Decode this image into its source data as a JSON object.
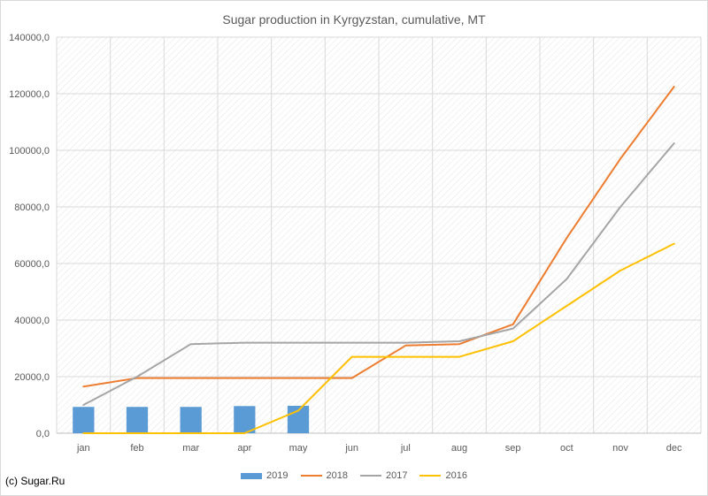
{
  "chart_data": {
    "type": "bar",
    "title": "Sugar production in Kyrgyzstan, cumulative, MT",
    "categories": [
      "jan",
      "feb",
      "mar",
      "apr",
      "may",
      "jun",
      "jul",
      "aug",
      "sep",
      "oct",
      "nov",
      "dec"
    ],
    "ylim": [
      0,
      140000
    ],
    "ytick_values": [
      0,
      20000,
      40000,
      60000,
      80000,
      100000,
      120000,
      140000
    ],
    "ytick_labels": [
      "0,0",
      "20000,0",
      "40000,0",
      "60000,0",
      "80000,0",
      "100000,0",
      "120000,0",
      "140000,0"
    ],
    "grid": true,
    "legend_position": "bottom",
    "series": [
      {
        "name": "2019",
        "kind": "bar",
        "color": "#5b9bd5",
        "values": [
          9300,
          9300,
          9300,
          9600,
          9700,
          null,
          null,
          null,
          null,
          null,
          null,
          null
        ]
      },
      {
        "name": "2018",
        "kind": "line",
        "color": "#ed7d31",
        "values": [
          16500,
          19500,
          19500,
          19500,
          19500,
          19500,
          31000,
          31500,
          38500,
          69000,
          97000,
          122500
        ]
      },
      {
        "name": "2017",
        "kind": "line",
        "color": "#a5a5a5",
        "values": [
          10000,
          20000,
          31500,
          32000,
          32000,
          32000,
          32000,
          32500,
          37000,
          54500,
          80000,
          102500
        ]
      },
      {
        "name": "2016",
        "kind": "line",
        "color": "#ffc000",
        "values": [
          0,
          0,
          0,
          0,
          8000,
          27000,
          27000,
          27000,
          32500,
          45000,
          57500,
          67000
        ]
      }
    ]
  },
  "credit": "(c) Sugar.Ru"
}
